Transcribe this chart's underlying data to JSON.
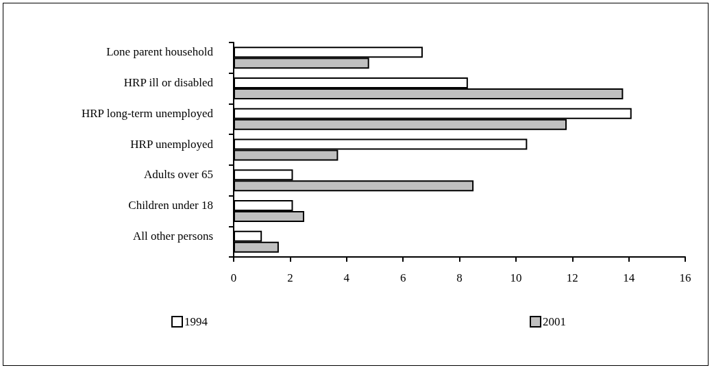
{
  "chart_data": {
    "type": "bar",
    "orientation": "horizontal",
    "categories": [
      "Lone parent household",
      "HRP ill or disabled",
      "HRP long-term unemployed",
      "HRP unemployed",
      "Adults over 65",
      "Children under 18",
      "All other persons"
    ],
    "series": [
      {
        "name": "1994",
        "color": "#ffffff",
        "values": [
          6.7,
          8.3,
          14.1,
          10.4,
          2.1,
          2.1,
          1.0
        ]
      },
      {
        "name": "2001",
        "color": "#c0c0c0",
        "values": [
          4.8,
          13.8,
          11.8,
          3.7,
          8.5,
          2.5,
          1.6
        ]
      }
    ],
    "xlim": [
      0,
      16
    ],
    "xticks": [
      0,
      2,
      4,
      6,
      8,
      10,
      12,
      14,
      16
    ],
    "grid": false,
    "legend": "bottom"
  }
}
